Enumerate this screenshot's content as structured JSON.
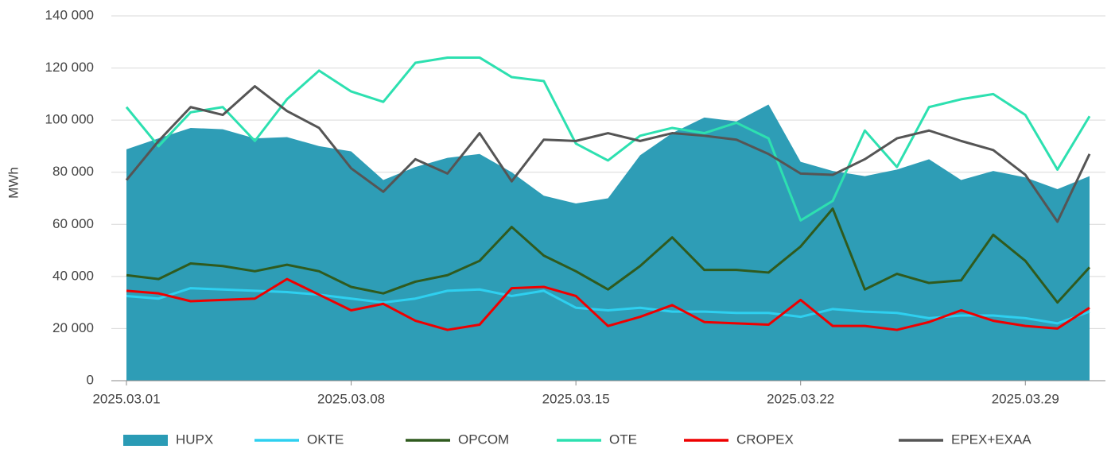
{
  "chart_data": {
    "type": "line",
    "ylabel": "MWh",
    "categories": [
      "2025.03.01",
      null,
      null,
      null,
      null,
      null,
      null,
      "2025.03.08",
      null,
      null,
      null,
      null,
      null,
      null,
      "2025.03.15",
      null,
      null,
      null,
      null,
      null,
      null,
      "2025.03.22",
      null,
      null,
      null,
      null,
      null,
      null,
      "2025.03.29",
      null,
      null
    ],
    "ylim": [
      0,
      140000
    ],
    "yticks": [
      0,
      {
        "value": 20000,
        "label": "20 000"
      },
      {
        "value": 40000,
        "label": "40 000"
      },
      {
        "value": 60000,
        "label": "60 000"
      },
      {
        "value": 80000,
        "label": "80 000"
      },
      {
        "value": 100000,
        "label": "100 000"
      },
      {
        "value": 120000,
        "label": "120 000"
      },
      {
        "value": 140000,
        "label": "140 000"
      }
    ],
    "grid": true,
    "legend": "bottom",
    "series": [
      {
        "name": "HUPX",
        "type": "area",
        "color": "#2a9bb5",
        "values": [
          88800,
          93000,
          97000,
          96500,
          93000,
          93500,
          90000,
          88000,
          77000,
          82000,
          85500,
          87000,
          80000,
          71000,
          68000,
          70000,
          86500,
          95000,
          101000,
          99500,
          106000,
          84000,
          80500,
          78500,
          81000,
          85000,
          77000,
          80500,
          78000,
          73500,
          78500
        ]
      },
      {
        "name": "OKTE",
        "type": "line",
        "color": "#2ed0f0",
        "values": [
          32500,
          31500,
          35500,
          35000,
          34500,
          34000,
          33000,
          31500,
          30000,
          31500,
          34500,
          35000,
          32500,
          34500,
          28000,
          27000,
          28000,
          26500,
          26500,
          26000,
          26000,
          24500,
          27500,
          26500,
          26000,
          24000,
          25000,
          25000,
          24000,
          22000,
          26500
        ]
      },
      {
        "name": "OPCOM",
        "type": "line",
        "color": "#2f5a1e",
        "values": [
          40500,
          39000,
          45000,
          44000,
          42000,
          44500,
          42000,
          36000,
          33500,
          38000,
          40500,
          46000,
          59000,
          48000,
          42000,
          35000,
          44000,
          55000,
          42500,
          42500,
          41500,
          51500,
          66000,
          35000,
          41000,
          37500,
          38500,
          56000,
          46000,
          30000,
          43500
        ]
      },
      {
        "name": "OTE",
        "type": "line",
        "color": "#2de0b0",
        "values": [
          105000,
          90000,
          103000,
          105000,
          92000,
          108000,
          119000,
          111000,
          107000,
          122000,
          124000,
          124000,
          116500,
          115000,
          91000,
          84500,
          94000,
          97000,
          95000,
          99000,
          93000,
          61500,
          69000,
          96000,
          82000,
          105000,
          108000,
          110000,
          102000,
          81000,
          101500
        ]
      },
      {
        "name": "CROPEX",
        "type": "line",
        "color": "#ee0000",
        "values": [
          34500,
          33500,
          30500,
          31000,
          31500,
          39000,
          33000,
          27000,
          29500,
          23000,
          19500,
          21500,
          35500,
          36000,
          32500,
          21000,
          24500,
          29000,
          22500,
          22000,
          21500,
          31000,
          21000,
          21000,
          19500,
          22500,
          27000,
          23000,
          21000,
          20000,
          28000
        ]
      },
      {
        "name": "EPEX+EXAA",
        "type": "line",
        "color": "#555555",
        "values": [
          77000,
          92000,
          105000,
          102000,
          113000,
          103500,
          97000,
          81500,
          72500,
          85000,
          79500,
          95000,
          76500,
          92500,
          92000,
          95000,
          92000,
          95000,
          94000,
          92500,
          87000,
          79500,
          79000,
          85000,
          93000,
          96000,
          92000,
          88500,
          79000,
          61000,
          87000
        ]
      }
    ]
  }
}
